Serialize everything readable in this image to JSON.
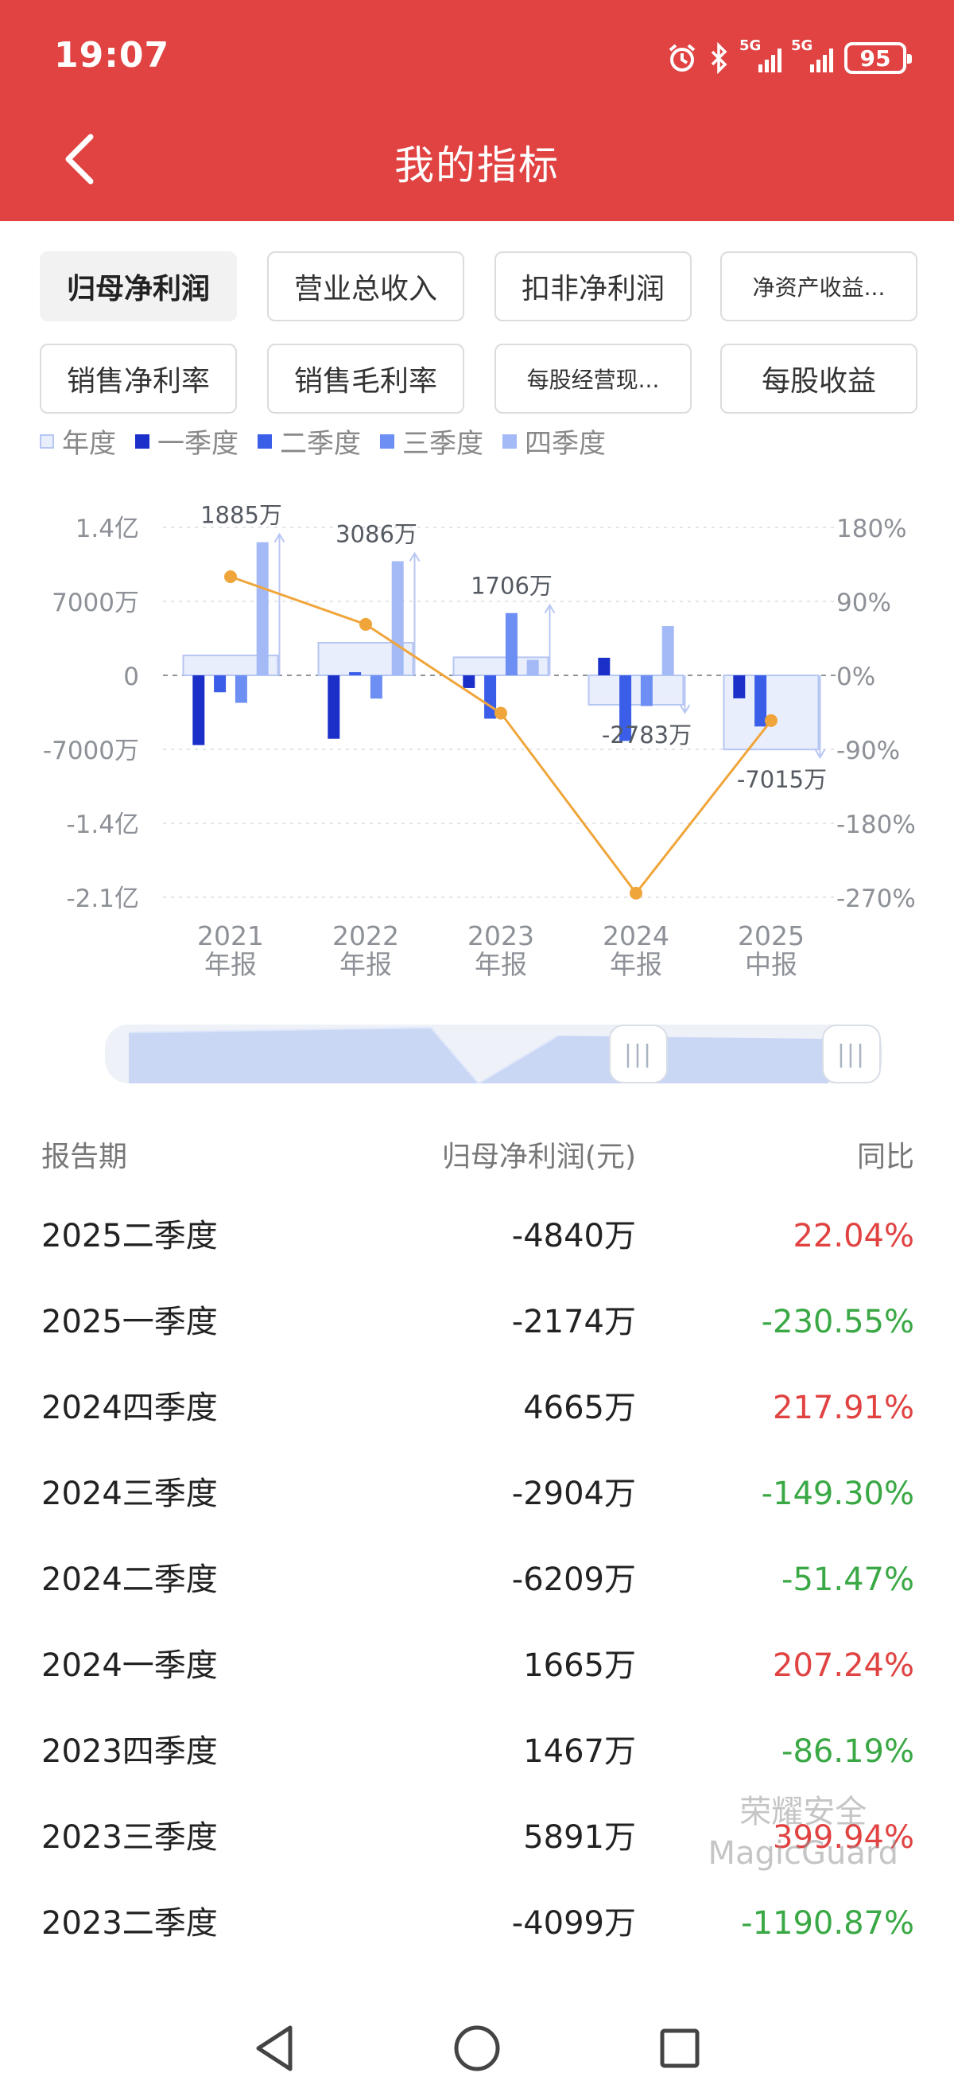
{
  "status": {
    "time": "19:07",
    "battery": "95",
    "network": "5G"
  },
  "header": {
    "title": "我的指标"
  },
  "tabs": [
    {
      "label": "归母净利润",
      "active": true
    },
    {
      "label": "营业总收入",
      "active": false
    },
    {
      "label": "扣非净利润",
      "active": false
    },
    {
      "label": "净资产收益...",
      "active": false
    },
    {
      "label": "销售净利率",
      "active": false
    },
    {
      "label": "销售毛利率",
      "active": false
    },
    {
      "label": "每股经营现...",
      "active": false
    },
    {
      "label": "每股收益",
      "active": false
    }
  ],
  "legend": [
    {
      "label": "年度",
      "color": "#e9eefc"
    },
    {
      "label": "一季度",
      "color": "#1b2fc9"
    },
    {
      "label": "二季度",
      "color": "#3b5ee8"
    },
    {
      "label": "三季度",
      "color": "#6d8ef2"
    },
    {
      "label": "四季度",
      "color": "#a4baf6"
    }
  ],
  "chart_data": {
    "type": "bar",
    "categories": [
      [
        "2021",
        "年报"
      ],
      [
        "2022",
        "年报"
      ],
      [
        "2023",
        "年报"
      ],
      [
        "2024",
        "年报"
      ],
      [
        "2025",
        "中报"
      ]
    ],
    "y_left_ticks": [
      "1.4亿",
      "7000万",
      "0",
      "-7000万",
      "-1.4亿",
      "-2.1亿"
    ],
    "y_right_ticks": [
      "180%",
      "90%",
      "0%",
      "-90%",
      "-180%",
      "-270%"
    ],
    "ylim_left": [
      -210000000,
      140000000
    ],
    "ylim_right": [
      -270,
      180
    ],
    "annual_values": [
      18850000,
      30860000,
      17060000,
      -27830000,
      -70150000
    ],
    "annual_labels": [
      "1885万",
      "3086万",
      "1706万",
      "-2783万",
      "-7015万"
    ],
    "quarters": [
      [
        -66000000,
        -16000000,
        -26000000,
        126000000
      ],
      [
        -60000000,
        3000000,
        -22000000,
        108000000
      ],
      [
        -12000000,
        -40990000,
        58910000,
        14670000
      ],
      [
        16650000,
        -62090000,
        -29040000,
        46650000
      ],
      [
        -21740000,
        -48400000,
        null,
        null
      ]
    ],
    "yoy_growth": [
      120,
      62,
      -46,
      -265,
      -55
    ],
    "colors": {
      "q1": "#1b2fc9",
      "q2": "#3b5ee8",
      "q3": "#6d8ef2",
      "q4": "#a4baf6",
      "annual_fill": "#e9eefc",
      "annual_stroke": "#b6c6f3",
      "line": "#f0a53a",
      "zero": "#8f949b"
    }
  },
  "table": {
    "headers": [
      "报告期",
      "归母净利润(元)",
      "同比"
    ],
    "rows": [
      {
        "period": "2025二季度",
        "value": "-4840万",
        "yoy": "22.04%",
        "dir": "up"
      },
      {
        "period": "2025一季度",
        "value": "-2174万",
        "yoy": "-230.55%",
        "dir": "down"
      },
      {
        "period": "2024四季度",
        "value": "4665万",
        "yoy": "217.91%",
        "dir": "up"
      },
      {
        "period": "2024三季度",
        "value": "-2904万",
        "yoy": "-149.30%",
        "dir": "down"
      },
      {
        "period": "2024二季度",
        "value": "-6209万",
        "yoy": "-51.47%",
        "dir": "down"
      },
      {
        "period": "2024一季度",
        "value": "1665万",
        "yoy": "207.24%",
        "dir": "up"
      },
      {
        "period": "2023四季度",
        "value": "1467万",
        "yoy": "-86.19%",
        "dir": "down"
      },
      {
        "period": "2023三季度",
        "value": "5891万",
        "yoy": "399.94%",
        "dir": "up"
      },
      {
        "period": "2023二季度",
        "value": "-4099万",
        "yoy": "-1190.87%",
        "dir": "down"
      }
    ]
  },
  "watermark": {
    "line1": "荣耀安全",
    "line2": "MagicGuard"
  },
  "slider": {
    "handle_glyph": "|||"
  },
  "nav": {
    "back_icon": "triangle-back",
    "home_icon": "circle-home",
    "recents_icon": "square-recents"
  }
}
